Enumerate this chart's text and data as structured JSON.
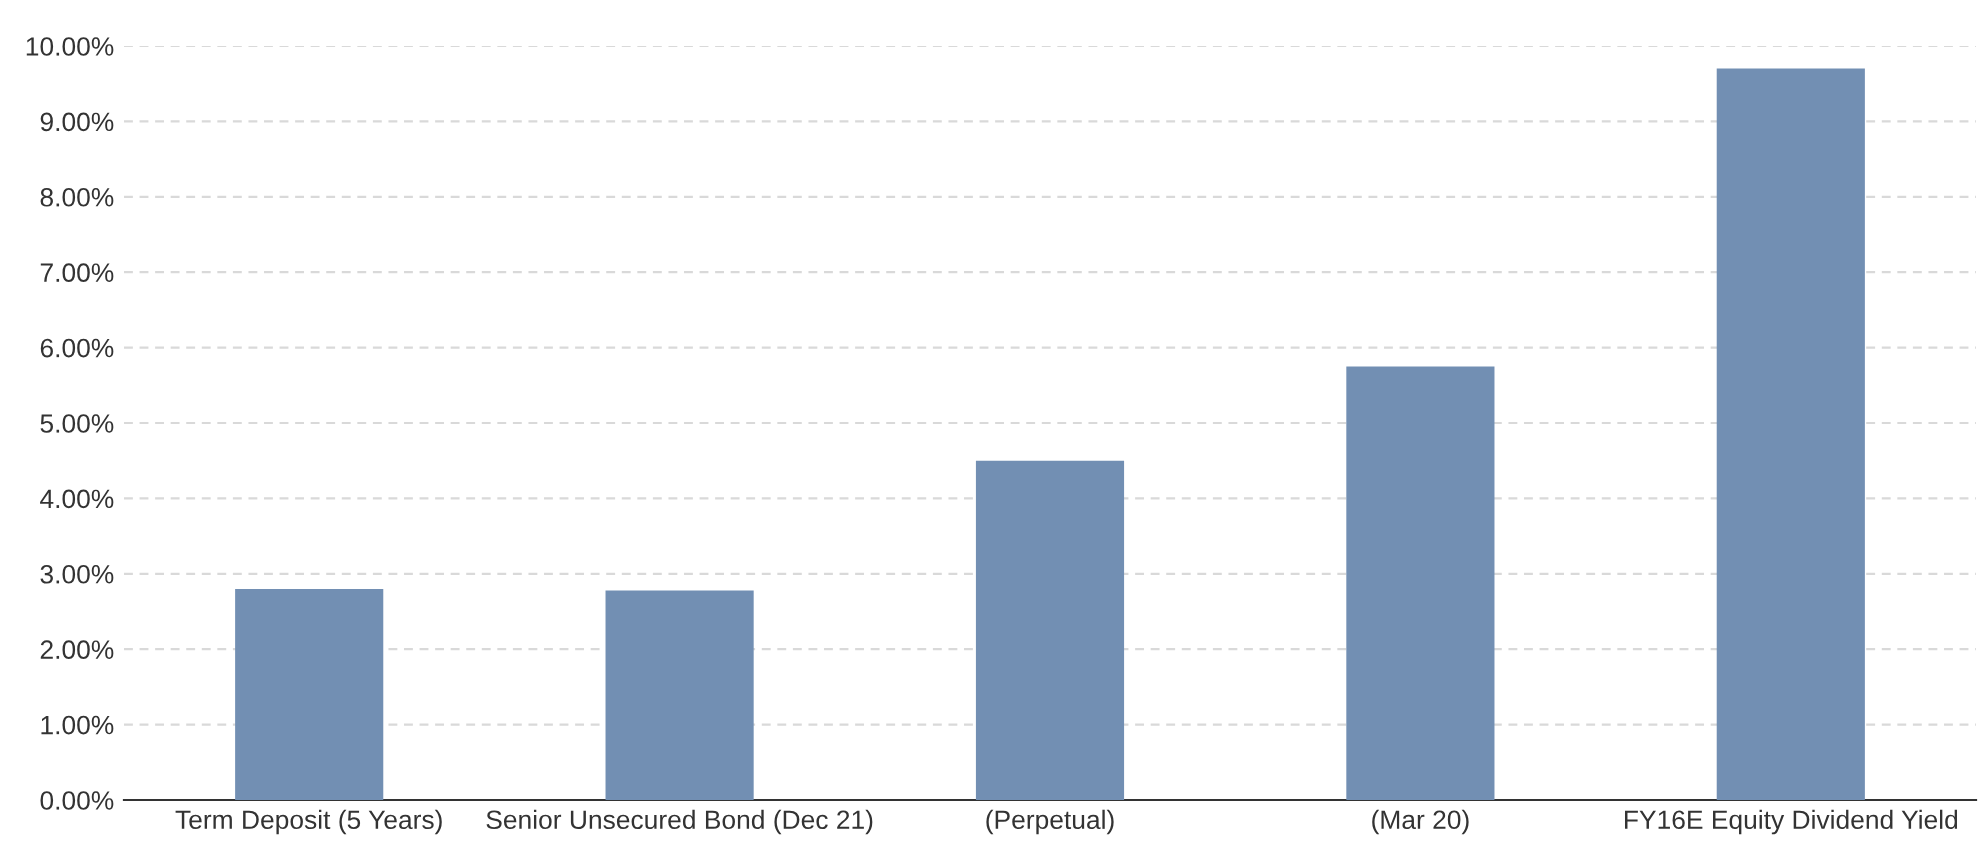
{
  "chart_data": {
    "type": "bar",
    "categories": [
      "Term Deposit (5 Years)",
      "Senior Unsecured Bond (Dec 21)",
      "(Perpetual)",
      "(Mar 20)",
      "FY16E Equity Dividend Yield"
    ],
    "values": [
      2.8,
      2.78,
      4.5,
      5.75,
      9.7
    ],
    "color": "#728fb3",
    "ylim": [
      0,
      10
    ],
    "yticks": [
      {
        "value": 0,
        "label": "0.00%"
      },
      {
        "value": 1,
        "label": "1.00%"
      },
      {
        "value": 2,
        "label": "2.00%"
      },
      {
        "value": 3,
        "label": "3.00%"
      },
      {
        "value": 4,
        "label": "4.00%"
      },
      {
        "value": 5,
        "label": "5.00%"
      },
      {
        "value": 6,
        "label": "6.00%"
      },
      {
        "value": 7,
        "label": "7.00%"
      },
      {
        "value": 8,
        "label": "8.00%"
      },
      {
        "value": 9,
        "label": "9.00%"
      },
      {
        "value": 10,
        "label": "10.00%"
      }
    ],
    "grid": "y",
    "legend": false
  }
}
